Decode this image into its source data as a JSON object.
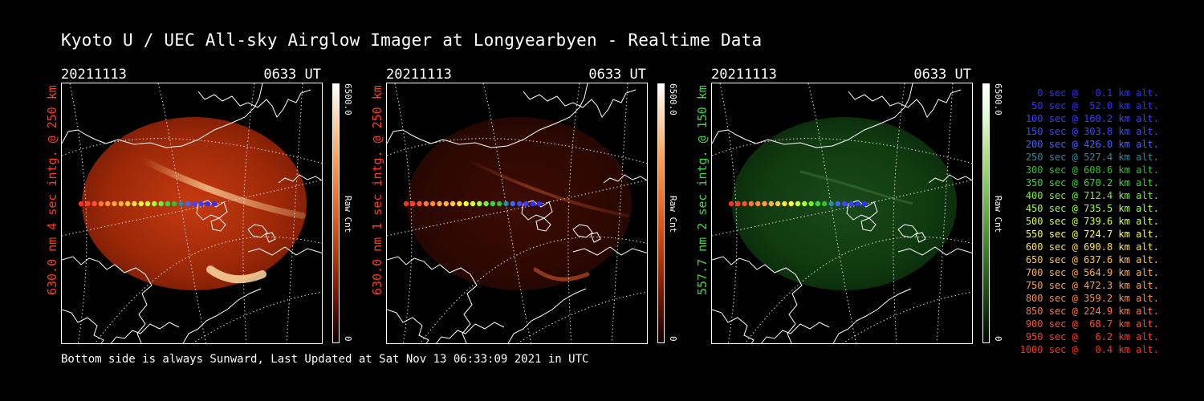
{
  "title": "Kyoto U / UEC All-sky Airglow Imager at Longyearbyen - Realtime Data",
  "panels": [
    {
      "date": "20211113",
      "time": "0633 UT",
      "ylabel": "630.0 nm 4 sec intg. @ 250 km",
      "color": "#ff3c1e",
      "cbar_max": "6500.0",
      "cbar_min": "0",
      "cbar_label": "Raw Cnt",
      "sky_color": "#b42a08",
      "brightness": "bright"
    },
    {
      "date": "20211113",
      "time": "0633 UT",
      "ylabel": "630.0 nm 1 sec intg. @ 250 km",
      "color": "#ff3c1e",
      "cbar_max": "6500.0",
      "cbar_min": "0",
      "cbar_label": "Raw Cnt",
      "sky_color": "#3a0a02",
      "brightness": "dim"
    },
    {
      "date": "20211113",
      "time": "0633 UT",
      "ylabel": "557.7 nm 2 sec intg. @ 150 km",
      "color": "#3cdc3c",
      "cbar_max": "6500.0",
      "cbar_min": "0",
      "cbar_label": "Raw Cnt",
      "sky_color": "#0f3a0f",
      "brightness": "green"
    }
  ],
  "footer": "Bottom side is always Sunward, Last Updated at Sat Nov 13 06:33:09 2021 in UTC",
  "trajectory": [
    {
      "text": "   0 sec @   0.1 km alt.",
      "color": "#3030ff"
    },
    {
      "text": "  50 sec @  52.0 km alt.",
      "color": "#3030ff"
    },
    {
      "text": " 100 sec @ 160.2 km alt.",
      "color": "#3c3cff"
    },
    {
      "text": " 150 sec @ 303.8 km alt.",
      "color": "#4046ff"
    },
    {
      "text": " 200 sec @ 426.0 km alt.",
      "color": "#3c64ff"
    },
    {
      "text": " 250 sec @ 527.4 km alt.",
      "color": "#2a8aa0"
    },
    {
      "text": " 300 sec @ 608.6 km alt.",
      "color": "#30c030"
    },
    {
      "text": " 350 sec @ 670.2 km alt.",
      "color": "#38d838"
    },
    {
      "text": " 400 sec @ 712.4 km alt.",
      "color": "#78f030"
    },
    {
      "text": " 450 sec @ 735.5 km alt.",
      "color": "#a0ff3c"
    },
    {
      "text": " 500 sec @ 739.6 km alt.",
      "color": "#d2ff3c"
    },
    {
      "text": " 550 sec @ 724.7 km alt.",
      "color": "#ffff40"
    },
    {
      "text": " 600 sec @ 690.8 km alt.",
      "color": "#ffe040"
    },
    {
      "text": " 650 sec @ 637.6 km alt.",
      "color": "#ffc840"
    },
    {
      "text": " 700 sec @ 564.9 km alt.",
      "color": "#ffb040"
    },
    {
      "text": " 750 sec @ 472.3 km alt.",
      "color": "#ffa040"
    },
    {
      "text": " 800 sec @ 359.2 km alt.",
      "color": "#ff8c3c"
    },
    {
      "text": " 850 sec @ 224.9 km alt.",
      "color": "#ff7838"
    },
    {
      "text": " 900 sec @  68.7 km alt.",
      "color": "#ff5030"
    },
    {
      "text": " 950 sec @   6.2 km alt.",
      "color": "#ff3c28"
    },
    {
      "text": "1000 sec @   0.4 km alt.",
      "color": "#ff3020"
    }
  ]
}
